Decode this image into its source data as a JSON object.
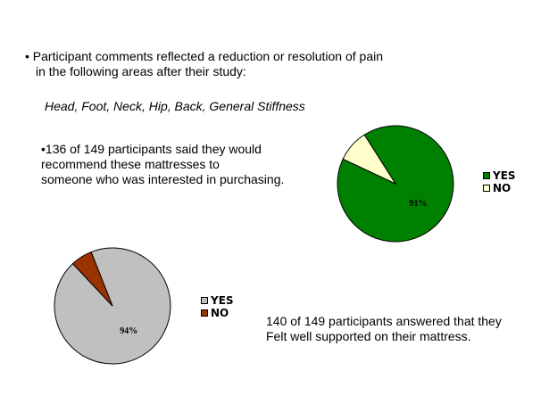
{
  "text": {
    "bullet1_line1": "• Participant comments reflected a reduction or resolution of pain",
    "bullet1_line2": "in the following areas after their study:",
    "pain_areas": "Head, Foot, Neck, Hip, Back, General Stiffness",
    "bullet2_line1": "•136 of 149 participants said they would",
    "bullet2_line2": "recommend these mattresses to",
    "bullet2_line3": "someone who was interested in purchasing.",
    "caption3_line1": "140 of 149 participants answered that they",
    "caption3_line2": "Felt well supported on their mattress."
  },
  "chart_data": [
    {
      "type": "pie",
      "categories": [
        "YES",
        "NO"
      ],
      "values": [
        91,
        9
      ],
      "colors": [
        "#008000",
        "#ffffcc"
      ],
      "data_labels": [
        "91%",
        ""
      ],
      "legend": {
        "placement": "right",
        "entries": [
          "YES",
          "NO"
        ]
      }
    },
    {
      "type": "pie",
      "categories": [
        "YES",
        "NO"
      ],
      "values": [
        94,
        6
      ],
      "colors": [
        "#c0c0c0",
        "#993300"
      ],
      "data_labels": [
        "94%",
        ""
      ],
      "legend": {
        "placement": "right",
        "entries": [
          "YES",
          "NO"
        ]
      }
    }
  ]
}
